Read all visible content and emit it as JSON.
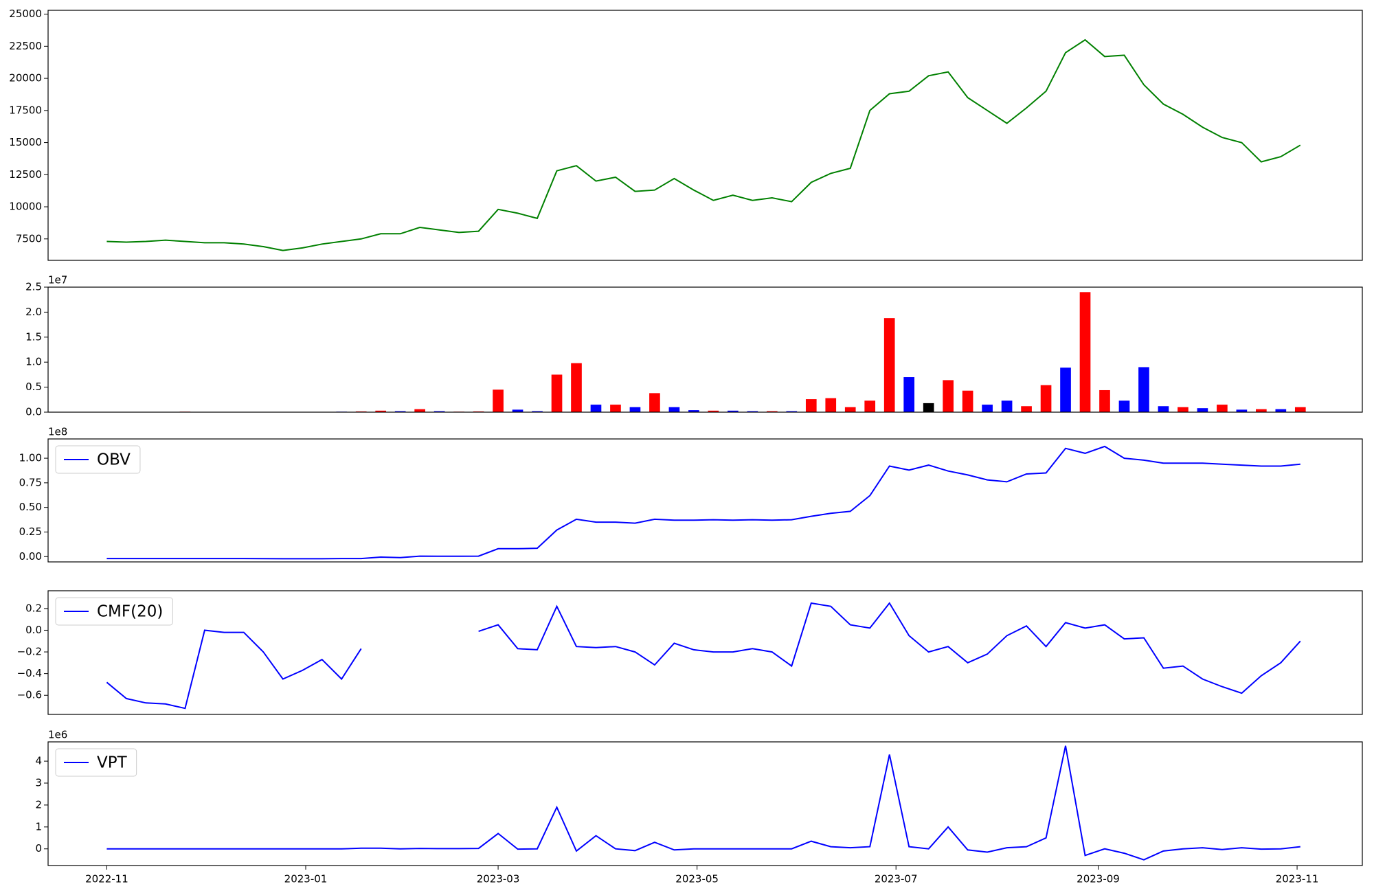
{
  "chart_data": {
    "type": "multi-panel",
    "x": [
      "2022-11-01",
      "2022-11-07",
      "2022-11-13",
      "2022-11-19",
      "2022-11-25",
      "2022-12-01",
      "2022-12-07",
      "2022-12-13",
      "2022-12-19",
      "2022-12-25",
      "2022-12-31",
      "2023-01-06",
      "2023-01-12",
      "2023-01-18",
      "2023-01-24",
      "2023-01-30",
      "2023-02-05",
      "2023-02-11",
      "2023-02-17",
      "2023-02-23",
      "2023-03-01",
      "2023-03-07",
      "2023-03-13",
      "2023-03-19",
      "2023-03-25",
      "2023-03-31",
      "2023-04-06",
      "2023-04-12",
      "2023-04-18",
      "2023-04-24",
      "2023-04-30",
      "2023-05-06",
      "2023-05-12",
      "2023-05-18",
      "2023-05-24",
      "2023-05-30",
      "2023-06-05",
      "2023-06-11",
      "2023-06-17",
      "2023-06-23",
      "2023-06-29",
      "2023-07-05",
      "2023-07-11",
      "2023-07-17",
      "2023-07-23",
      "2023-07-29",
      "2023-08-04",
      "2023-08-10",
      "2023-08-16",
      "2023-08-22",
      "2023-08-28",
      "2023-09-03",
      "2023-09-09",
      "2023-09-15",
      "2023-09-21",
      "2023-09-27",
      "2023-10-03",
      "2023-10-09",
      "2023-10-15",
      "2023-10-21",
      "2023-10-27",
      "2023-11-02"
    ],
    "xlim": [
      "2022-10-14",
      "2023-11-21"
    ],
    "xticks": [
      "2022-11",
      "2023-01",
      "2023-03",
      "2023-05",
      "2023-07",
      "2023-09",
      "2023-11"
    ],
    "panels": [
      {
        "type": "line",
        "color": "green",
        "ylim": [
          5830,
          25300
        ],
        "yticks": [
          7500,
          10000,
          12500,
          15000,
          17500,
          20000,
          22500,
          25000
        ],
        "values": [
          7300,
          7250,
          7300,
          7400,
          7300,
          7200,
          7200,
          7100,
          6900,
          6600,
          6800,
          7100,
          7300,
          7500,
          7900,
          7900,
          8400,
          8200,
          8000,
          8100,
          9800,
          9500,
          9100,
          12800,
          13200,
          12000,
          12300,
          11200,
          11300,
          12200,
          11300,
          10500,
          10900,
          10500,
          10700,
          10400,
          11900,
          12600,
          13000,
          17500,
          18800,
          19000,
          20200,
          20500,
          18500,
          17500,
          16500,
          17700,
          19000,
          22000,
          23000,
          21700,
          21800,
          19500,
          18000,
          17200,
          16200,
          15400,
          15000,
          13500,
          13900,
          14800
        ]
      },
      {
        "type": "bar",
        "offset_label": "1e7",
        "ylim": [
          0,
          25000000
        ],
        "yticks": [
          {
            "value": 0,
            "label": "0.0"
          },
          {
            "value": 5000000,
            "label": "0.5"
          },
          {
            "value": 10000000,
            "label": "1.0"
          },
          {
            "value": 15000000,
            "label": "1.5"
          },
          {
            "value": 20000000,
            "label": "2.0"
          },
          {
            "value": 25000000,
            "label": "2.5"
          }
        ],
        "values": [
          20000,
          10000,
          15000,
          10000,
          100000,
          20000,
          10000,
          10000,
          10000,
          10000,
          10000,
          20000,
          100000,
          150000,
          300000,
          200000,
          600000,
          200000,
          100000,
          150000,
          4500000,
          500000,
          200000,
          7500000,
          9800000,
          1500000,
          1500000,
          1000000,
          3800000,
          1000000,
          400000,
          300000,
          300000,
          200000,
          200000,
          200000,
          2600000,
          2800000,
          1000000,
          2300000,
          18800000,
          7000000,
          1800000,
          6400000,
          4300000,
          1500000,
          2300000,
          1200000,
          5400000,
          8900000,
          24000000,
          4400000,
          2300000,
          9000000,
          1200000,
          1000000,
          800000,
          1500000,
          500000,
          600000,
          600000,
          1000000
        ],
        "colors": [
          "red",
          "blue",
          "red",
          "blue",
          "red",
          "blue",
          "red",
          "blue",
          "red",
          "blue",
          "red",
          "blue",
          "blue",
          "red",
          "red",
          "blue",
          "red",
          "blue",
          "red",
          "red",
          "red",
          "blue",
          "blue",
          "red",
          "red",
          "blue",
          "red",
          "blue",
          "red",
          "blue",
          "blue",
          "red",
          "blue",
          "blue",
          "red",
          "blue",
          "red",
          "red",
          "red",
          "red",
          "red",
          "blue",
          "black",
          "red",
          "red",
          "blue",
          "blue",
          "red",
          "red",
          "blue",
          "red",
          "red",
          "blue",
          "blue",
          "blue",
          "red",
          "blue",
          "red",
          "blue",
          "red",
          "blue",
          "red"
        ]
      },
      {
        "type": "line",
        "offset_label": "1e8",
        "ylim": [
          -5400000,
          119600000
        ],
        "legend": "upper left",
        "yticks": [
          {
            "value": 0,
            "label": "0.00"
          },
          {
            "value": 25000000,
            "label": "0.25"
          },
          {
            "value": 50000000,
            "label": "0.50"
          },
          {
            "value": 75000000,
            "label": "0.75"
          },
          {
            "value": 100000000,
            "label": "1.00"
          }
        ],
        "series": [
          {
            "name": "OBV",
            "color": "blue",
            "values": [
              -2000000,
              -2000000,
              -2000000,
              -2000000,
              -2000000,
              -2000000,
              -2000000,
              -2000000,
              -2100000,
              -2200000,
              -2200000,
              -2200000,
              -2000000,
              -2000000,
              -500000,
              -1000000,
              500000,
              300000,
              300000,
              500000,
              8000000,
              8000000,
              8500000,
              27000000,
              38000000,
              35000000,
              35000000,
              34000000,
              38000000,
              37000000,
              37000000,
              37500000,
              37000000,
              37500000,
              37000000,
              37500000,
              41000000,
              44000000,
              46000000,
              62000000,
              92000000,
              88000000,
              93000000,
              87000000,
              83000000,
              78000000,
              76000000,
              84000000,
              85000000,
              110000000,
              105000000,
              112000000,
              100000000,
              98000000,
              95000000,
              95000000,
              95000000,
              94000000,
              93000000,
              92000000,
              92000000,
              94000000
            ]
          }
        ]
      },
      {
        "type": "line",
        "ylim": [
          -0.776,
          0.364
        ],
        "legend": "upper left",
        "yticks": [
          {
            "value": -0.6,
            "label": "−0.6"
          },
          {
            "value": -0.4,
            "label": "−0.4"
          },
          {
            "value": -0.2,
            "label": "−0.2"
          },
          {
            "value": 0,
            "label": "0.0"
          },
          0.2
        ],
        "series": [
          {
            "name": "CMF(20)",
            "color": "blue",
            "values": [
              -0.48,
              -0.63,
              -0.67,
              -0.68,
              -0.72,
              0.0,
              -0.02,
              -0.02,
              -0.2,
              -0.45,
              -0.37,
              -0.27,
              -0.45,
              -0.17,
              null,
              null,
              null,
              null,
              null,
              -0.01,
              0.05,
              -0.17,
              -0.18,
              0.22,
              -0.15,
              -0.16,
              -0.15,
              -0.2,
              -0.32,
              -0.12,
              -0.18,
              -0.2,
              -0.2,
              -0.17,
              -0.2,
              -0.33,
              0.25,
              0.22,
              0.05,
              0.02,
              0.25,
              -0.05,
              -0.2,
              -0.15,
              -0.3,
              -0.22,
              -0.05,
              0.04,
              -0.15,
              0.07,
              0.02,
              0.05,
              -0.08,
              -0.07,
              -0.35,
              -0.33,
              -0.45,
              -0.52,
              -0.58,
              -0.42,
              -0.3,
              -0.1
            ]
          }
        ]
      },
      {
        "type": "line",
        "offset_label": "1e6",
        "ylim": [
          -760000,
          4880000
        ],
        "legend": "upper left",
        "yticks": [
          0,
          {
            "value": 1000000,
            "label": "1"
          },
          {
            "value": 2000000,
            "label": "2"
          },
          {
            "value": 3000000,
            "label": "3"
          },
          {
            "value": 4000000,
            "label": "4"
          }
        ],
        "series": [
          {
            "name": "VPT",
            "color": "blue",
            "values": [
              0,
              0,
              0,
              0,
              0,
              0,
              0,
              0,
              0,
              0,
              0,
              0,
              0,
              30000,
              30000,
              0,
              20000,
              10000,
              10000,
              20000,
              700000,
              -10000,
              0,
              1900000,
              -100000,
              600000,
              0,
              -80000,
              300000,
              -50000,
              0,
              0,
              0,
              0,
              0,
              0,
              350000,
              100000,
              50000,
              100000,
              4300000,
              100000,
              0,
              1000000,
              -50000,
              -150000,
              50000,
              100000,
              500000,
              4700000,
              -300000,
              0,
              -200000,
              -500000,
              -100000,
              0,
              50000,
              -30000,
              50000,
              -10000,
              0,
              100000
            ]
          }
        ]
      }
    ]
  }
}
